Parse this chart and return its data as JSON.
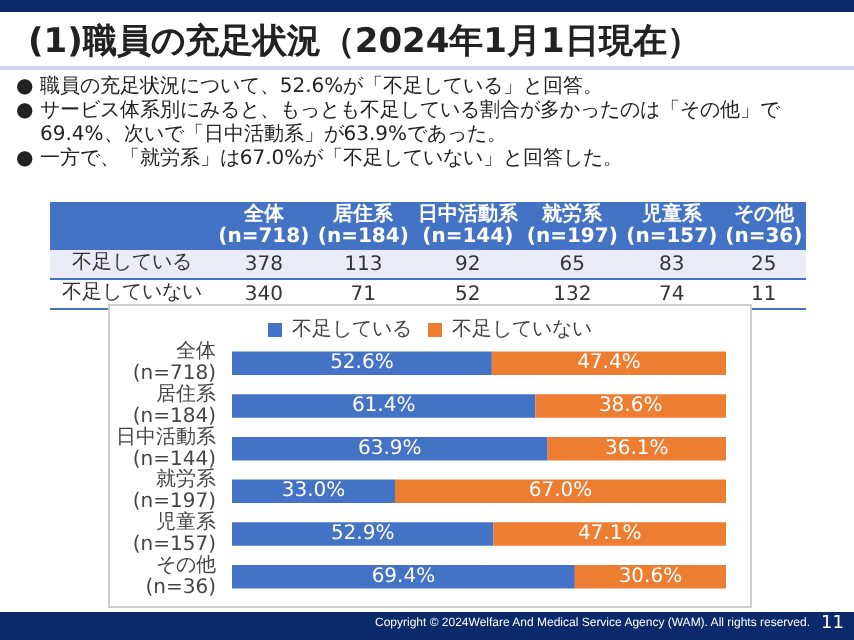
{
  "chart_data": [
    {
      "type": "other",
      "title": "(1)職員の充足状況（2024年1月1日現在）",
      "annotations": [
        "● 職員の充足状況について、52.6%が「不足している」と回答。",
        "● サービス体系別にみると、もっとも不足している割合が多かったのは「その他」で69.4%、次いで「日中活動系」が63.9%であった。",
        "● 一方で、「就労系」は67.0%が「不足していない」と回答した。",
        "Copyright © 2024Welfare And Medical Service Agency (WAM). All rights reserved.",
        "11"
      ],
      "categories": [
        "全体\n(n=718)",
        "居住系\n(n=184)",
        "日中活動系\n(n=144)",
        "就労系\n(n=197)",
        "児童系\n(n=157)",
        "その他\n(n=36)"
      ],
      "y_categories": [
        "不足している",
        "不足していない"
      ],
      "cell_labels": [
        [
          "378",
          "113",
          "92",
          "65",
          "83",
          "25"
        ],
        [
          "340",
          "71",
          "52",
          "132",
          "74",
          "11"
        ]
      ]
    },
    {
      "type": "bar",
      "orientation": "horizontal",
      "stacked": true,
      "legend": "top",
      "tick_labels": "y",
      "categories": [
        "全体\n(n=718)",
        "居住系\n(n=184)",
        "日中活動系\n(n=144)",
        "就労系\n(n=197)",
        "児童系\n(n=157)",
        "その他\n(n=36)"
      ],
      "series": [
        {
          "name": "不足している",
          "color": "#4472c4",
          "values": [
            52.6,
            61.4,
            63.9,
            33.0,
            52.9,
            69.4
          ],
          "value_labels": [
            "52.6%",
            "61.4%",
            "63.9%",
            "33.0%",
            "52.9%",
            "69.4%"
          ]
        },
        {
          "name": "不足していない",
          "color": "#ed7d31",
          "values": [
            47.4,
            38.6,
            36.1,
            67.0,
            47.1,
            30.6
          ],
          "value_labels": [
            "47.4%",
            "38.6%",
            "36.1%",
            "67.0%",
            "47.1%",
            "30.6%"
          ]
        }
      ]
    }
  ]
}
